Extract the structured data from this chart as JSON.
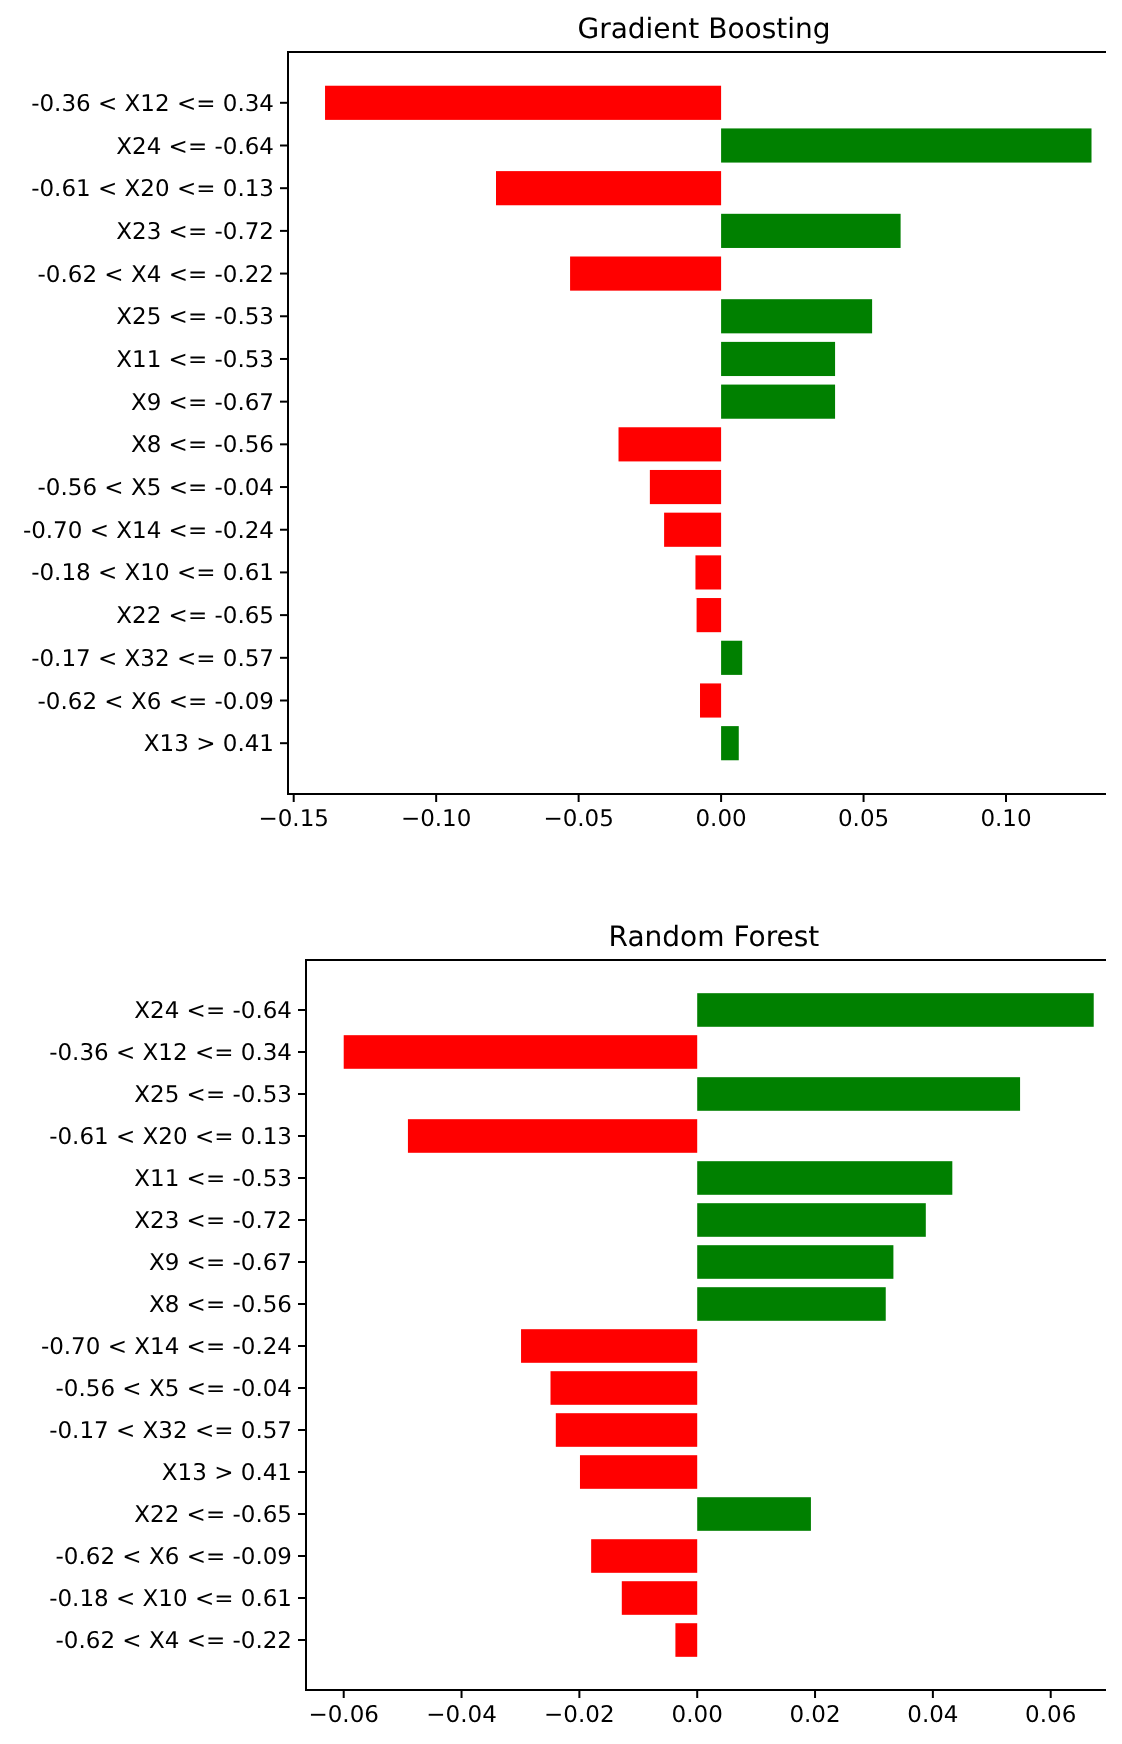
{
  "chart_data": [
    {
      "type": "bar",
      "orientation": "horizontal",
      "title": "Gradient Boosting",
      "categories": [
        "-0.36 < X12 <= 0.34",
        "X24 <= -0.64",
        "-0.61 < X20 <= 0.13",
        "X23 <= -0.72",
        "-0.62 < X4 <= -0.22",
        "X25 <= -0.53",
        "X11 <= -0.53",
        "X9 <= -0.67",
        "X8 <= -0.56",
        "-0.56 < X5 <= -0.04",
        "-0.70 < X14 <= -0.24",
        "-0.18 < X10 <= 0.61",
        "X22 <= -0.65",
        "-0.17 < X32 <= 0.57",
        "-0.62 < X6 <= -0.09",
        "X13 > 0.41"
      ],
      "values": [
        -0.139,
        0.13,
        -0.079,
        0.063,
        -0.053,
        0.053,
        0.04,
        0.04,
        -0.036,
        -0.025,
        -0.02,
        -0.009,
        -0.0086,
        0.0074,
        -0.0074,
        0.0062
      ],
      "colors": [
        "#ff0000",
        "#008000",
        "#ff0000",
        "#008000",
        "#ff0000",
        "#008000",
        "#008000",
        "#008000",
        "#ff0000",
        "#ff0000",
        "#ff0000",
        "#ff0000",
        "#ff0000",
        "#008000",
        "#ff0000",
        "#008000"
      ],
      "xlim": [
        -0.152,
        0.14
      ],
      "xticks": [
        {
          "value": -0.15,
          "label": "−0.15"
        },
        {
          "value": -0.1,
          "label": "−0.10"
        },
        {
          "value": -0.05,
          "label": "−0.05"
        },
        {
          "value": 0,
          "label": "0.00"
        },
        {
          "value": 0.05,
          "label": "0.05"
        },
        {
          "value": 0.1,
          "label": "0.10"
        }
      ],
      "grid": false
    },
    {
      "type": "bar",
      "orientation": "horizontal",
      "title": "Random Forest",
      "categories": [
        "X24 <= -0.64",
        "-0.36 < X12 <= 0.34",
        "X25 <= -0.53",
        "-0.61 < X20 <= 0.13",
        "X11 <= -0.53",
        "X23 <= -0.72",
        "X9 <= -0.67",
        "X8 <= -0.56",
        "-0.70 < X14 <= -0.24",
        "-0.56 < X5 <= -0.04",
        "-0.17 < X32 <= 0.57",
        "X13 > 0.41",
        "X22 <= -0.65",
        "-0.62 < X6 <= -0.09",
        "-0.18 < X10 <= 0.61",
        "-0.62 < X4 <= -0.22"
      ],
      "values": [
        0.0673,
        -0.06,
        0.0548,
        -0.0491,
        0.0433,
        0.0388,
        0.0333,
        0.032,
        -0.0299,
        -0.0249,
        -0.024,
        -0.0199,
        0.0193,
        -0.018,
        -0.0128,
        -0.0037
      ],
      "colors": [
        "#008000",
        "#ff0000",
        "#008000",
        "#ff0000",
        "#008000",
        "#008000",
        "#008000",
        "#008000",
        "#ff0000",
        "#ff0000",
        "#ff0000",
        "#ff0000",
        "#008000",
        "#ff0000",
        "#ff0000",
        "#ff0000"
      ],
      "xlim": [
        -0.0664,
        0.0721
      ],
      "xticks": [
        {
          "value": -0.06,
          "label": "−0.06"
        },
        {
          "value": -0.04,
          "label": "−0.04"
        },
        {
          "value": -0.02,
          "label": "−0.02"
        },
        {
          "value": 0,
          "label": "0.00"
        },
        {
          "value": 0.02,
          "label": "0.02"
        },
        {
          "value": 0.04,
          "label": "0.04"
        },
        {
          "value": 0.06,
          "label": "0.06"
        }
      ],
      "grid": false
    }
  ]
}
